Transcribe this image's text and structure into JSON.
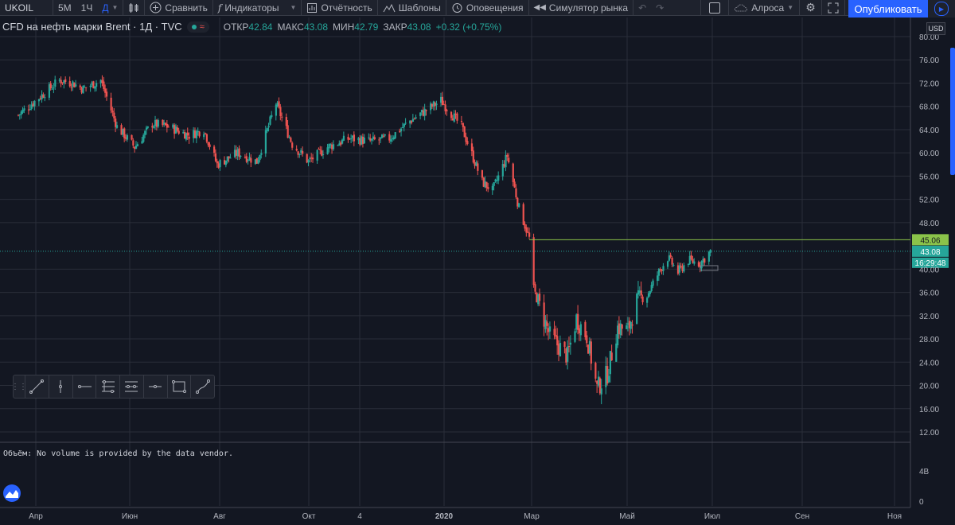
{
  "toolbar": {
    "symbol": "UKOIL",
    "resolutions": [
      "5М",
      "1Ч",
      "Д"
    ],
    "active_resolution": "Д",
    "compare": "Сравнить",
    "indicators": "Индикаторы",
    "reports": "Отчётность",
    "templates": "Шаблоны",
    "alerts": "Оповещения",
    "replay": "Симулятор рынка",
    "layout_name": "Алроса",
    "publish": "Опубликовать"
  },
  "legend": {
    "title": "CFD на нефть марки Brent · 1Д · TVC",
    "open_label": "ОТКР",
    "open": "42.84",
    "high_label": "МАКС",
    "high": "43.08",
    "low_label": "МИН",
    "low": "42.79",
    "close_label": "ЗАКР",
    "close": "43.08",
    "change": "+0.32 (+0.75%)"
  },
  "volume_note": "Объём: No volume is provided by the data vendor.",
  "price_axis": {
    "currency": "USD",
    "ticks": [
      "80.00",
      "76.00",
      "72.00",
      "68.00",
      "64.00",
      "60.00",
      "56.00",
      "52.00",
      "48.00",
      "45.06",
      "43.08",
      "40.00",
      "36.00",
      "32.00",
      "28.00",
      "24.00",
      "20.00",
      "16.00",
      "12.00"
    ],
    "volume_ticks": [
      "4B",
      "0"
    ],
    "line_label": "45.06",
    "last_price": "43.08",
    "countdown": "16:29:48"
  },
  "time_axis": [
    "Апр",
    "Июн",
    "Авг",
    "Окт",
    "4",
    "2020",
    "Мар",
    "Май",
    "Июл",
    "Сен",
    "Ноя"
  ],
  "colors": {
    "up": "#26a69a",
    "down": "#ef5350",
    "background": "#131722",
    "accent": "#2962ff",
    "hline": "#8bc34a"
  },
  "chart_data": {
    "type": "candlestick",
    "title": "CFD на нефть марки Brent",
    "ylim": [
      12,
      80
    ],
    "hline": 45.06,
    "last": 43.08,
    "points": [
      [
        "2019-03-25",
        66.5
      ],
      [
        "2019-04-08",
        69.5
      ],
      [
        "2019-04-22",
        72.5
      ],
      [
        "2019-05-01",
        72.0
      ],
      [
        "2019-05-08",
        71.0
      ],
      [
        "2019-05-20",
        72.5
      ],
      [
        "2019-05-31",
        64.5
      ],
      [
        "2019-06-12",
        61.0
      ],
      [
        "2019-06-24",
        65.0
      ],
      [
        "2019-07-05",
        64.5
      ],
      [
        "2019-07-19",
        63.0
      ],
      [
        "2019-07-29",
        64.0
      ],
      [
        "2019-08-07",
        58.0
      ],
      [
        "2019-08-21",
        60.0
      ],
      [
        "2019-09-03",
        58.5
      ],
      [
        "2019-09-16",
        68.5
      ],
      [
        "2019-09-27",
        61.5
      ],
      [
        "2019-10-08",
        58.5
      ],
      [
        "2019-10-21",
        61.0
      ],
      [
        "2019-11-05",
        62.5
      ],
      [
        "2019-11-19",
        62.0
      ],
      [
        "2019-12-02",
        62.5
      ],
      [
        "2019-12-16",
        65.5
      ],
      [
        "2020-01-06",
        69.0
      ],
      [
        "2020-01-20",
        64.5
      ],
      [
        "2020-02-03",
        55.0
      ],
      [
        "2020-02-10",
        53.5
      ],
      [
        "2020-02-20",
        59.5
      ],
      [
        "2020-02-28",
        50.5
      ],
      [
        "2020-03-06",
        45.3
      ],
      [
        "2020-03-09",
        36.5
      ],
      [
        "2020-03-20",
        28.5
      ],
      [
        "2020-04-01",
        25.0
      ],
      [
        "2020-04-07",
        31.5
      ],
      [
        "2020-04-14",
        28.5
      ],
      [
        "2020-04-21",
        19.5
      ],
      [
        "2020-04-28",
        22.0
      ],
      [
        "2020-05-05",
        30.0
      ],
      [
        "2020-05-12",
        29.5
      ],
      [
        "2020-05-18",
        34.5
      ],
      [
        "2020-05-25",
        35.5
      ],
      [
        "2020-06-03",
        40.0
      ],
      [
        "2020-06-08",
        42.0
      ],
      [
        "2020-06-15",
        39.5
      ],
      [
        "2020-06-22",
        41.5
      ],
      [
        "2020-06-30",
        41.0
      ],
      [
        "2020-07-07",
        43.08
      ]
    ]
  }
}
